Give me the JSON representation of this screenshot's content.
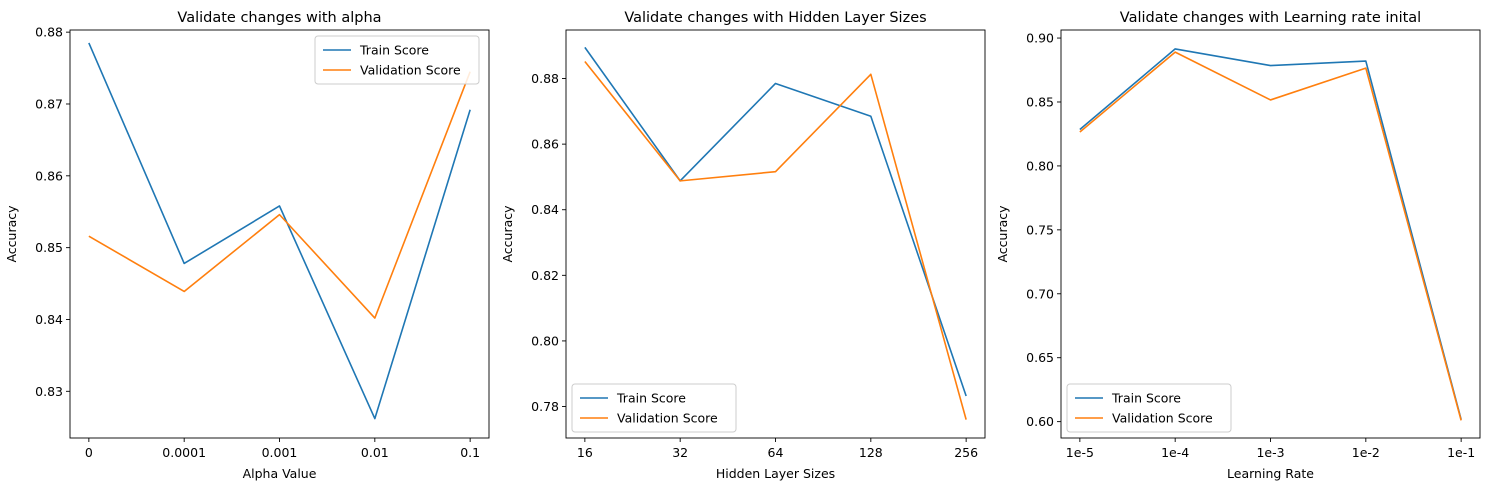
{
  "chart_data": [
    {
      "type": "line",
      "title": "Validate changes with alpha",
      "xlabel": "Alpha Value",
      "ylabel": "Accuracy",
      "categories": [
        "0",
        "0.0001",
        "0.001",
        "0.01",
        "0.1"
      ],
      "ylim": [
        0.8235,
        0.8803
      ],
      "yticks": [
        0.83,
        0.84,
        0.85,
        0.86,
        0.87,
        0.88
      ],
      "ytick_labels": [
        "0.83",
        "0.84",
        "0.85",
        "0.86",
        "0.87",
        "0.88"
      ],
      "legend_loc": "upper right",
      "series": [
        {
          "name": "Train Score",
          "color": "#1f77b4",
          "values": [
            0.8785,
            0.8478,
            0.8558,
            0.8262,
            0.8692
          ]
        },
        {
          "name": "Validation Score",
          "color": "#ff7f0e",
          "values": [
            0.8516,
            0.8439,
            0.8546,
            0.8402,
            0.8745
          ]
        }
      ]
    },
    {
      "type": "line",
      "title": "Validate changes with Hidden Layer Sizes",
      "xlabel": "Hidden Layer Sizes",
      "ylabel": "Accuracy",
      "categories": [
        "16",
        "32",
        "64",
        "128",
        "256"
      ],
      "ylim": [
        0.7704,
        0.8948
      ],
      "yticks": [
        0.78,
        0.8,
        0.82,
        0.84,
        0.86,
        0.88
      ],
      "ytick_labels": [
        "0.78",
        "0.80",
        "0.82",
        "0.84",
        "0.86",
        "0.88"
      ],
      "legend_loc": "lower left",
      "series": [
        {
          "name": "Train Score",
          "color": "#1f77b4",
          "values": [
            0.8895,
            0.8488,
            0.8785,
            0.8685,
            0.7832
          ]
        },
        {
          "name": "Validation Score",
          "color": "#ff7f0e",
          "values": [
            0.8852,
            0.8488,
            0.8516,
            0.8813,
            0.776
          ]
        }
      ]
    },
    {
      "type": "line",
      "title": "Validate changes with Learning rate inital",
      "xlabel": "Learning Rate",
      "ylabel": "Accuracy",
      "categories": [
        "1e-5",
        "1e-4",
        "1e-3",
        "1e-2",
        "1e-1"
      ],
      "ylim": [
        0.5872,
        0.9063
      ],
      "yticks": [
        0.6,
        0.65,
        0.7,
        0.75,
        0.8,
        0.85,
        0.9
      ],
      "ytick_labels": [
        "0.60",
        "0.65",
        "0.70",
        "0.75",
        "0.80",
        "0.85",
        "0.90"
      ],
      "legend_loc": "lower left",
      "series": [
        {
          "name": "Train Score",
          "color": "#1f77b4",
          "values": [
            0.8285,
            0.8915,
            0.8785,
            0.882,
            0.6017
          ]
        },
        {
          "name": "Validation Score",
          "color": "#ff7f0e",
          "values": [
            0.8265,
            0.889,
            0.8516,
            0.8765,
            0.601
          ]
        }
      ]
    }
  ]
}
